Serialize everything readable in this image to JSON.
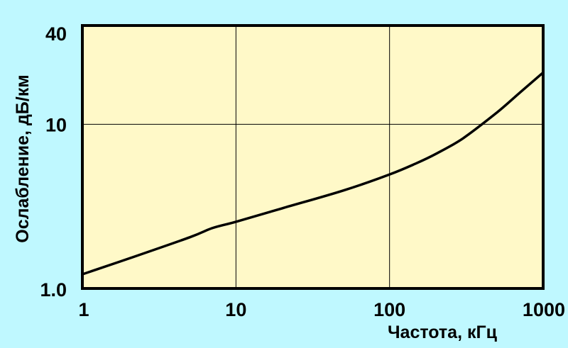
{
  "chart_data": {
    "type": "line",
    "title": "",
    "xlabel": "Частота, кГц",
    "ylabel": "Ослабление, дБ/км",
    "xscale": "log",
    "yscale": "log",
    "xlim": [
      1,
      1000
    ],
    "ylim": [
      1.0,
      40
    ],
    "grid": true,
    "x_ticks": [
      {
        "value": 1,
        "label": "1"
      },
      {
        "value": 10,
        "label": "10"
      },
      {
        "value": 100,
        "label": "100"
      },
      {
        "value": 1000,
        "label": "1000"
      }
    ],
    "y_ticks": [
      {
        "value": 1.0,
        "label": "1.0"
      },
      {
        "value": 10,
        "label": "10"
      },
      {
        "value": 40,
        "label": "40"
      }
    ],
    "plot_background": "#fff9c8",
    "page_background": "#bff8ff",
    "line_color": "#000000",
    "series": [
      {
        "x": [
          1,
          2,
          5,
          7,
          10,
          20,
          50,
          100,
          150,
          200,
          300,
          500,
          700,
          1000
        ],
        "y": [
          1.22,
          1.52,
          2.05,
          2.33,
          2.55,
          3.08,
          3.95,
          4.95,
          5.8,
          6.6,
          8.2,
          11.8,
          15.5,
          20.7
        ]
      }
    ]
  }
}
